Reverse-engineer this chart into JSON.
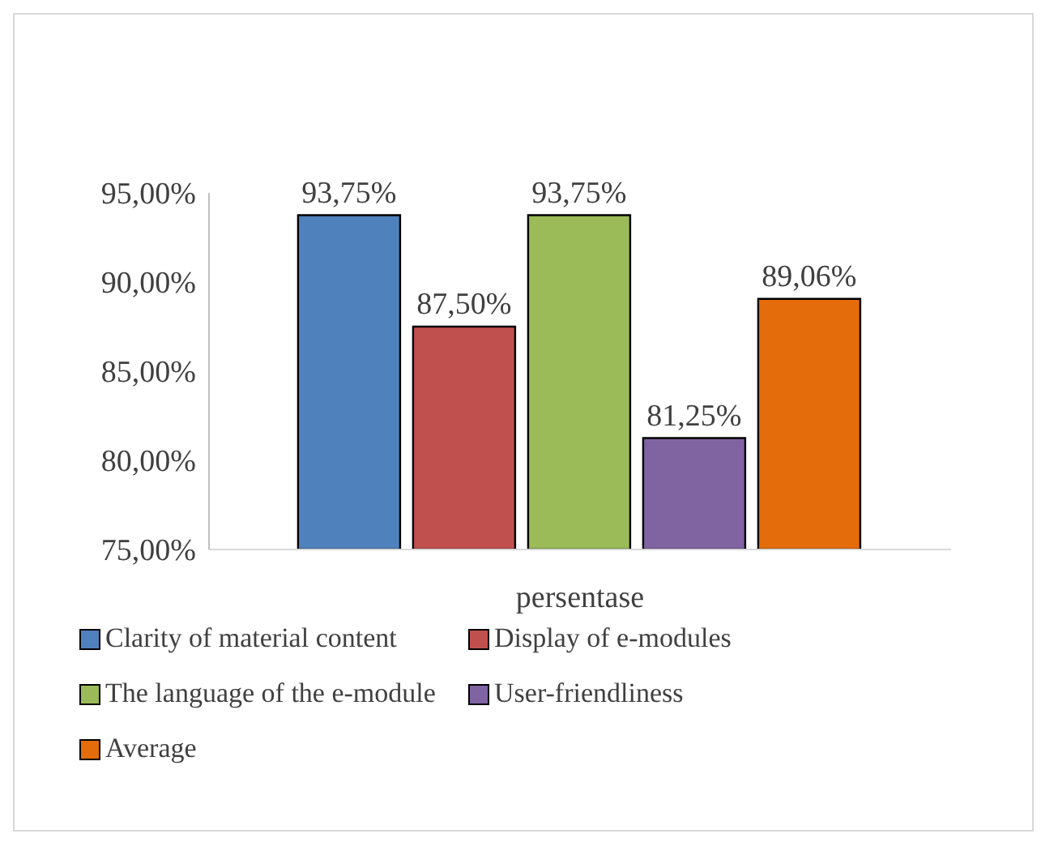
{
  "chart_data": {
    "type": "bar",
    "categories": [
      "persentase"
    ],
    "series": [
      {
        "name": "Clarity of material content",
        "color": "#4f81bd",
        "values": [
          93.75
        ],
        "value_labels": [
          "93,75%"
        ]
      },
      {
        "name": "Display of e-modules",
        "color": "#c0504d",
        "values": [
          87.5
        ],
        "value_labels": [
          "87,50%"
        ]
      },
      {
        "name": "The language of the e-module",
        "color": "#9bbb59",
        "values": [
          93.75
        ],
        "value_labels": [
          "93,75%"
        ]
      },
      {
        "name": "User-friendliness",
        "color": "#8064a2",
        "values": [
          81.25
        ],
        "value_labels": [
          "81,25%"
        ]
      },
      {
        "name": "Average",
        "color": "#e46c0a",
        "values": [
          89.06
        ],
        "value_labels": [
          "89,06%"
        ]
      }
    ],
    "ylim": [
      75,
      95
    ],
    "yticks": [
      {
        "value": 75,
        "label": "75,00%"
      },
      {
        "value": 80,
        "label": "80,00%"
      },
      {
        "value": 85,
        "label": "85,00%"
      },
      {
        "value": 90,
        "label": "90,00%"
      },
      {
        "value": 95,
        "label": "95,00%"
      }
    ],
    "grid": false,
    "legend": "bottom"
  }
}
